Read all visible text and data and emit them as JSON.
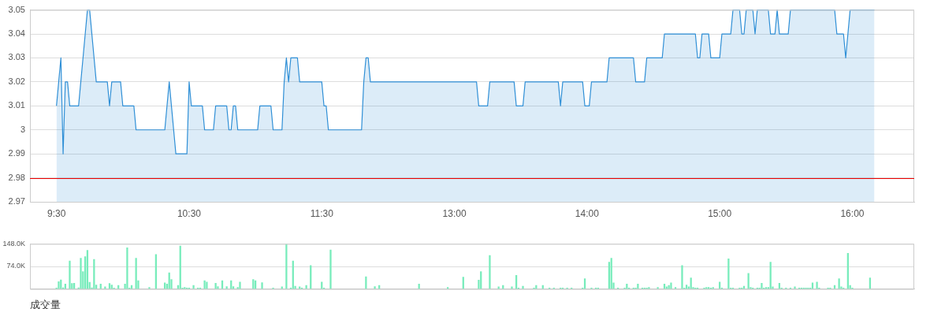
{
  "chart_data": [
    {
      "type": "area",
      "categories": [
        null,
        null,
        null,
        null,
        null,
        null,
        null,
        null,
        null,
        null,
        null,
        null,
        "9:30",
        null,
        null,
        null,
        null,
        null,
        null,
        null,
        null,
        null,
        null,
        null,
        null,
        null,
        null,
        null,
        null,
        null,
        null,
        null,
        null,
        null,
        null,
        null,
        null,
        null,
        null,
        null,
        null,
        null,
        null,
        null,
        null,
        null,
        null,
        null,
        null,
        null,
        null,
        null,
        null,
        null,
        null,
        null,
        null,
        null,
        null,
        null,
        null,
        null,
        null,
        null,
        null,
        null,
        null,
        null,
        null,
        null,
        null,
        null,
        "10:30",
        null,
        null,
        null,
        null,
        null,
        null,
        null,
        null,
        null,
        null,
        null,
        null,
        null,
        null,
        null,
        null,
        null,
        null,
        null,
        null,
        null,
        null,
        null,
        null,
        null,
        null,
        null,
        null,
        null,
        null,
        null,
        null,
        null,
        null,
        null,
        null,
        null,
        null,
        null,
        null,
        null,
        null,
        null,
        null,
        null,
        null,
        null,
        null,
        null,
        null,
        null,
        null,
        null,
        null,
        null,
        null,
        null,
        null,
        null,
        "11:30",
        null,
        null,
        null,
        null,
        null,
        null,
        null,
        null,
        null,
        null,
        null,
        null,
        null,
        null,
        null,
        null,
        null,
        null,
        null,
        null,
        null,
        null,
        null,
        null,
        null,
        null,
        null,
        null,
        null,
        null,
        null,
        null,
        null,
        null,
        null,
        null,
        null,
        null,
        null,
        null,
        null,
        null,
        null,
        null,
        null,
        null,
        null,
        null,
        null,
        null,
        null,
        null,
        null,
        null,
        null,
        null,
        null,
        null,
        null,
        "13:00",
        null,
        null,
        null,
        null,
        null,
        null,
        null,
        null,
        null,
        null,
        null,
        null,
        null,
        null,
        null,
        null,
        null,
        null,
        null,
        null,
        null,
        null,
        null,
        null,
        null,
        null,
        null,
        null,
        null,
        null,
        null,
        null,
        null,
        null,
        null,
        null,
        null,
        null,
        null,
        null,
        null,
        null,
        null,
        null,
        null,
        null,
        null,
        null,
        null,
        null,
        null,
        null,
        null,
        null,
        null,
        null,
        null,
        null,
        null,
        "14:00",
        null,
        null,
        null,
        null,
        null,
        null,
        null,
        null,
        null,
        null,
        null,
        null,
        null,
        null,
        null,
        null,
        null,
        null,
        null,
        null,
        null,
        null,
        null,
        null,
        null,
        null,
        null,
        null,
        null,
        null,
        null,
        null,
        null,
        null,
        null,
        null,
        null,
        null,
        null,
        null,
        null,
        null,
        null,
        null,
        null,
        null,
        null,
        null,
        null,
        null,
        null,
        null,
        null,
        null,
        null,
        null,
        null,
        null,
        null,
        "15:00",
        null,
        null,
        null,
        null,
        null,
        null,
        null,
        null,
        null,
        null,
        null,
        null,
        null,
        null,
        null,
        null,
        null,
        null,
        null,
        null,
        null,
        null,
        null,
        null,
        null,
        null,
        null,
        null,
        null,
        null,
        null,
        null,
        null,
        null,
        null,
        null,
        null,
        null,
        null,
        null,
        null,
        null,
        null,
        null,
        null,
        null,
        null,
        null,
        null,
        null,
        null,
        null,
        null,
        null,
        null,
        null,
        null,
        null,
        null,
        "16:00",
        null,
        null,
        null,
        null,
        null,
        null,
        null,
        null,
        null,
        null,
        null,
        null,
        null,
        null,
        null,
        null,
        null,
        null,
        null,
        null,
        null,
        null,
        null,
        null,
        null,
        null,
        null,
        null
      ],
      "ylim": [
        2.97,
        3.05
      ],
      "yticks": [
        2.97,
        2.98,
        2.99,
        3,
        3.01,
        3.02,
        3.03,
        3.04,
        3.05
      ],
      "grid": "y",
      "series": [
        {
          "color": "#2f8fd6",
          "values": [
            null,
            null,
            null,
            null,
            null,
            null,
            null,
            null,
            null,
            null,
            null,
            null,
            3.01,
            3.02,
            3.03,
            2.99,
            3.02,
            3.02,
            3.01,
            3.01,
            3.01,
            3.01,
            3.01,
            3.02,
            3.03,
            3.04,
            3.05,
            3.05,
            3.04,
            3.03,
            3.02,
            3.02,
            3.02,
            3.02,
            3.02,
            3.02,
            3.01,
            3.02,
            3.02,
            3.02,
            3.02,
            3.02,
            3.01,
            3.01,
            3.01,
            3.01,
            3.01,
            3.01,
            3,
            3,
            3,
            3,
            3,
            3,
            3,
            3,
            3,
            3,
            3,
            3,
            3,
            3,
            3.01,
            3.02,
            3.01,
            3,
            2.99,
            2.99,
            2.99,
            2.99,
            2.99,
            2.99,
            3.02,
            3.01,
            3.01,
            3.01,
            3.01,
            3.01,
            3.01,
            3,
            3,
            3,
            3,
            3,
            3.01,
            3.01,
            3.01,
            3.01,
            3.01,
            3.01,
            3,
            3,
            3.01,
            3.01,
            3,
            3,
            3,
            3,
            3,
            3,
            3,
            3,
            3,
            3,
            3.01,
            3.01,
            3.01,
            3.01,
            3.01,
            3.01,
            3,
            3,
            3,
            3,
            3,
            3.02,
            3.03,
            3.02,
            3.03,
            3.03,
            3.03,
            3.03,
            3.02,
            3.02,
            3.02,
            3.02,
            3.02,
            3.02,
            3.02,
            3.02,
            3.02,
            3.02,
            3.02,
            3.01,
            3.01,
            3,
            3,
            3,
            3,
            3,
            3,
            3,
            3,
            3,
            3,
            3,
            3,
            3,
            3,
            3,
            3,
            3.02,
            3.03,
            3.03,
            3.02,
            3.02,
            3.02,
            3.02,
            3.02,
            3.02,
            3.02,
            3.02,
            3.02,
            3.02,
            3.02,
            3.02,
            3.02,
            3.02,
            3.02,
            3.02,
            3.02,
            3.02,
            3.02,
            3.02,
            3.02,
            3.02,
            3.02,
            3.02,
            3.02,
            3.02,
            3.02,
            3.02,
            3.02,
            3.02,
            3.02,
            3.02,
            3.02,
            3.02,
            3.02,
            3.02,
            3.02,
            3.02,
            3.02,
            3.02,
            3.02,
            3.02,
            3.02,
            3.02,
            3.02,
            3.02,
            3.02,
            3.02,
            3.02,
            3.01,
            3.01,
            3.01,
            3.01,
            3.01,
            3.02,
            3.02,
            3.02,
            3.02,
            3.02,
            3.02,
            3.02,
            3.02,
            3.02,
            3.02,
            3.02,
            3.02,
            3.01,
            3.01,
            3.01,
            3.01,
            3.02,
            3.02,
            3.02,
            3.02,
            3.02,
            3.02,
            3.02,
            3.02,
            3.02,
            3.02,
            3.02,
            3.02,
            3.02,
            3.02,
            3.02,
            3.02,
            3.01,
            3.02,
            3.02,
            3.02,
            3.02,
            3.02,
            3.02,
            3.02,
            3.02,
            3.02,
            3.02,
            3.01,
            3.01,
            3.01,
            3.02,
            3.02,
            3.02,
            3.02,
            3.02,
            3.02,
            3.02,
            3.02,
            3.03,
            3.03,
            3.03,
            3.03,
            3.03,
            3.03,
            3.03,
            3.03,
            3.03,
            3.03,
            3.03,
            3.03,
            3.02,
            3.02,
            3.02,
            3.02,
            3.02,
            3.03,
            3.03,
            3.03,
            3.03,
            3.03,
            3.03,
            3.03,
            3.03,
            3.04,
            3.04,
            3.04,
            3.04,
            3.04,
            3.04,
            3.04,
            3.04,
            3.04,
            3.04,
            3.04,
            3.04,
            3.04,
            3.04,
            3.04,
            3.03,
            3.03,
            3.04,
            3.04,
            3.04,
            3.04,
            3.03,
            3.03,
            3.03,
            3.03,
            3.03,
            3.04,
            3.04,
            3.04,
            3.04,
            3.04,
            3.05,
            3.05,
            3.05,
            3.05,
            3.04,
            3.04,
            3.05,
            3.05,
            3.05,
            3.05,
            3.04,
            3.05,
            3.05,
            3.05,
            3.05,
            3.05,
            3.05,
            3.04,
            3.04,
            3.04,
            3.05,
            3.04,
            3.04,
            3.04,
            3.04,
            3.04,
            3.05,
            3.05,
            3.05,
            3.05,
            3.05,
            3.05,
            3.05,
            3.05,
            3.05,
            3.05,
            3.05,
            3.05,
            3.05,
            3.05,
            3.05,
            3.05,
            3.05,
            3.05,
            3.05,
            3.05,
            3.05,
            3.04,
            3.04,
            3.04,
            3.04,
            3.03,
            3.04,
            3.05,
            3.05,
            3.05,
            3.05,
            3.05,
            3.05,
            3.05,
            3.05,
            3.05,
            3.05,
            3.05,
            3.05,
            null,
            null,
            null,
            null,
            null,
            null,
            null,
            null,
            null,
            null,
            null,
            null,
            null,
            null,
            null,
            null,
            null,
            null
          ]
        }
      ],
      "ref_lines": [
        {
          "axis": "y",
          "value": 2.98,
          "color": "#ee0000"
        }
      ]
    },
    {
      "type": "bar",
      "xlabel": "成交量",
      "categories": [
        null,
        null,
        null,
        null,
        null,
        null,
        null,
        null,
        null,
        null,
        null,
        null,
        null,
        null,
        null,
        null,
        null,
        null,
        null,
        null,
        null,
        null,
        null,
        null,
        null,
        null,
        null,
        null,
        null,
        null,
        null,
        null,
        null,
        null,
        null,
        null,
        null,
        null,
        null,
        null,
        null,
        null,
        null,
        null,
        null,
        null,
        null,
        null,
        null,
        null,
        null,
        null,
        null,
        null,
        null,
        null,
        null,
        null,
        null,
        null,
        null,
        null,
        null,
        null,
        null,
        null,
        null,
        null,
        null,
        null,
        null,
        null,
        null,
        null,
        null,
        null,
        null,
        null,
        null,
        null,
        null,
        null,
        null,
        null,
        null,
        null,
        null,
        null,
        null,
        null,
        null,
        null,
        null,
        null,
        null,
        null,
        null,
        null,
        null,
        null,
        null,
        null,
        null,
        null,
        null,
        null,
        null,
        null,
        null,
        null,
        null,
        null,
        null,
        null,
        null,
        null,
        null,
        null,
        null,
        null,
        null,
        null,
        null,
        null,
        null,
        null,
        null,
        null,
        null,
        null,
        null,
        null,
        null,
        null,
        null,
        null,
        null,
        null,
        null,
        null,
        null,
        null,
        null,
        null,
        null,
        null,
        null,
        null,
        null,
        null,
        null,
        null,
        null,
        null,
        null,
        null,
        null,
        null,
        null,
        null,
        null,
        null,
        null,
        null,
        null,
        null,
        null,
        null,
        null,
        null,
        null,
        null,
        null,
        null,
        null,
        null,
        null,
        null,
        null,
        null,
        null,
        null,
        null,
        null,
        null,
        null,
        null,
        null,
        null,
        null,
        null,
        null,
        null,
        null,
        null,
        null,
        null,
        null,
        null,
        null,
        null,
        null,
        null,
        null,
        null,
        null,
        null,
        null,
        null,
        null,
        null,
        null,
        null,
        null,
        null,
        null,
        null,
        null,
        null,
        null,
        null,
        null,
        null,
        null,
        null,
        null,
        null,
        null,
        null,
        null,
        null,
        null,
        null,
        null,
        null,
        null,
        null,
        null,
        null,
        null,
        null,
        null,
        null,
        null,
        null,
        null,
        null,
        null,
        null,
        null,
        null,
        null,
        null,
        null,
        null,
        null,
        null,
        null,
        null,
        null,
        null,
        null,
        null,
        null,
        null,
        null,
        null,
        null,
        null,
        null,
        null,
        null,
        null,
        null,
        null,
        null,
        null,
        null,
        null,
        null,
        null,
        null,
        null,
        null,
        null,
        null,
        null,
        null,
        null,
        null,
        null,
        null,
        null,
        null,
        null,
        null,
        null,
        null,
        null,
        null,
        null,
        null,
        null,
        null,
        null,
        null,
        null,
        null,
        null,
        null,
        null,
        null,
        null,
        null,
        null,
        null,
        null,
        null,
        null,
        null,
        null,
        null,
        null,
        null,
        null,
        null,
        null,
        null,
        null,
        null,
        null,
        null,
        null,
        null,
        null,
        null,
        null,
        null,
        null,
        null,
        null,
        null,
        null,
        null,
        null,
        null,
        null,
        null,
        null,
        null,
        null,
        null,
        null,
        null,
        null,
        null,
        null,
        null,
        null,
        null,
        null,
        null,
        null,
        null,
        null,
        null,
        null,
        null,
        null,
        null,
        null,
        null,
        null,
        null,
        null,
        null,
        null,
        null,
        null,
        null,
        null,
        null,
        null,
        null,
        null,
        null,
        null,
        null,
        null,
        null,
        null,
        null,
        null,
        null,
        null,
        null,
        null,
        null,
        null,
        null,
        null
      ],
      "ylim": [
        0,
        148
      ],
      "yticks": [
        {
          "value": 74,
          "label": "74.0K"
        },
        {
          "value": 148,
          "label": "148.0K"
        }
      ],
      "grid": "y",
      "tick_labels": "y",
      "series": [
        {
          "color": "#77ecbb",
          "values": [
            null,
            null,
            null,
            null,
            null,
            null,
            null,
            null,
            null,
            null,
            null,
            null,
            3,
            24,
            30,
            4,
            16,
            null,
            92,
            18,
            19,
            null,
            4,
            101,
            57,
            106,
            127,
            22,
            4,
            97,
            13,
            null,
            16,
            null,
            7,
            null,
            18,
            13,
            3,
            null,
            12,
            null,
            null,
            16,
            135,
            3,
            12,
            null,
            101,
            27,
            null,
            null,
            null,
            null,
            5,
            null,
            null,
            113,
            null,
            null,
            null,
            20,
            16,
            53,
            31,
            null,
            null,
            12,
            141,
            3,
            5,
            3,
            3,
            null,
            12,
            null,
            3,
            3,
            null,
            27,
            23,
            null,
            null,
            null,
            19,
            8,
            null,
            27,
            null,
            8,
            null,
            27,
            8,
            null,
            5,
            23,
            null,
            null,
            null,
            null,
            null,
            31,
            27,
            null,
            null,
            21,
            null,
            null,
            null,
            null,
            3,
            null,
            null,
            null,
            7,
            null,
            148,
            null,
            3,
            92,
            9,
            null,
            7,
            3,
            null,
            12,
            null,
            77,
            null,
            null,
            null,
            null,
            23,
            3,
            null,
            null,
            128,
            null,
            null,
            null,
            null,
            null,
            null,
            null,
            null,
            null,
            null,
            null,
            null,
            null,
            null,
            null,
            40,
            null,
            null,
            null,
            8,
            null,
            12,
            null,
            null,
            null,
            null,
            null,
            null,
            null,
            null,
            null,
            null,
            null,
            null,
            null,
            null,
            null,
            null,
            null,
            16,
            null,
            null,
            null,
            null,
            null,
            null,
            null,
            null,
            null,
            null,
            null,
            null,
            5,
            null,
            null,
            null,
            null,
            null,
            null,
            39,
            null,
            null,
            null,
            null,
            null,
            null,
            29,
            57,
            null,
            null,
            null,
            110,
            null,
            null,
            null,
            7,
            null,
            12,
            null,
            null,
            null,
            7,
            null,
            45,
            3,
            null,
            9,
            null,
            null,
            null,
            null,
            3,
            12,
            null,
            null,
            12,
            null,
            null,
            3,
            null,
            3,
            null,
            null,
            3,
            3,
            null,
            3,
            null,
            3,
            null,
            null,
            null,
            null,
            3,
            34,
            null,
            null,
            3,
            null,
            3,
            3,
            null,
            null,
            null,
            null,
            88,
            101,
            20,
            null,
            3,
            null,
            null,
            3,
            16,
            3,
            null,
            3,
            3,
            16,
            null,
            3,
            3,
            3,
            5,
            null,
            null,
            null,
            5,
            null,
            null,
            16,
            7,
            12,
            20,
            null,
            5,
            null,
            null,
            77,
            3,
            13,
            7,
            36,
            5,
            3,
            3,
            null,
            null,
            3,
            5,
            5,
            3,
            5,
            null,
            null,
            23,
            3,
            null,
            null,
            99,
            3,
            3,
            null,
            null,
            3,
            3,
            9,
            null,
            51,
            5,
            3,
            null,
            3,
            3,
            19,
            3,
            5,
            5,
            88,
            7,
            null,
            null,
            19,
            3,
            null,
            3,
            null,
            3,
            null,
            7,
            null,
            3,
            3,
            3,
            3,
            3,
            3,
            20,
            null,
            23,
            3,
            null,
            null,
            null,
            3,
            3,
            null,
            12,
            null,
            34,
            7,
            3,
            null,
            117,
            12,
            3,
            null,
            null,
            null,
            null,
            null,
            null,
            null,
            36,
            null,
            null,
            null,
            null,
            null,
            null,
            null,
            null,
            null,
            null,
            null,
            null,
            null,
            null,
            null,
            null,
            null,
            null,
            null,
            null
          ]
        }
      ]
    }
  ]
}
